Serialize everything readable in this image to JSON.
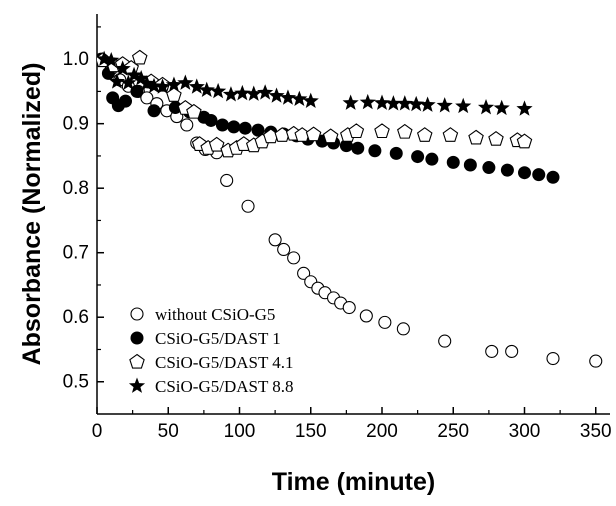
{
  "chart_data": {
    "type": "scatter",
    "xlabel": "Time (minute)",
    "ylabel": "Absorbance (Normalized)",
    "xlim": [
      0,
      360
    ],
    "ylim": [
      0.45,
      1.07
    ],
    "xticks": [
      0,
      50,
      100,
      150,
      200,
      250,
      300,
      350
    ],
    "yticks": [
      0.5,
      0.6,
      0.7,
      0.8,
      0.9,
      1.0
    ],
    "xtick_labels": [
      "0",
      "50",
      "100",
      "150",
      "200",
      "250",
      "300",
      "350"
    ],
    "ytick_labels": [
      "0.5",
      "0.6",
      "0.7",
      "0.8",
      "0.9",
      "1.0"
    ],
    "grid": false,
    "legend_position": "bottom-left",
    "series": [
      {
        "name": "without CSiO-G5",
        "marker": "open-circle",
        "points": [
          [
            4,
            0.999
          ],
          [
            10,
            0.985
          ],
          [
            16,
            0.968
          ],
          [
            22,
            0.958
          ],
          [
            29,
            0.95
          ],
          [
            35,
            0.94
          ],
          [
            42,
            0.931
          ],
          [
            49,
            0.92
          ],
          [
            56,
            0.911
          ],
          [
            63,
            0.898
          ],
          [
            70,
            0.87
          ],
          [
            76,
            0.86
          ],
          [
            84,
            0.855
          ],
          [
            91,
            0.812
          ],
          [
            106,
            0.772
          ],
          [
            125,
            0.72
          ],
          [
            131,
            0.705
          ],
          [
            138,
            0.692
          ],
          [
            145,
            0.668
          ],
          [
            150,
            0.655
          ],
          [
            155,
            0.645
          ],
          [
            160,
            0.638
          ],
          [
            166,
            0.63
          ],
          [
            171,
            0.622
          ],
          [
            177,
            0.615
          ],
          [
            189,
            0.602
          ],
          [
            202,
            0.592
          ],
          [
            215,
            0.582
          ],
          [
            244,
            0.563
          ],
          [
            277,
            0.547
          ],
          [
            291,
            0.547
          ],
          [
            320,
            0.536
          ],
          [
            350,
            0.532
          ]
        ]
      },
      {
        "name": "CSiO-G5/DAST 1",
        "marker": "filled-circle",
        "points": [
          [
            3,
            1.0
          ],
          [
            8,
            0.978
          ],
          [
            11,
            0.94
          ],
          [
            15,
            0.928
          ],
          [
            20,
            0.935
          ],
          [
            28,
            0.95
          ],
          [
            40,
            0.92
          ],
          [
            55,
            0.925
          ],
          [
            65,
            0.918
          ],
          [
            75,
            0.91
          ],
          [
            80,
            0.905
          ],
          [
            88,
            0.898
          ],
          [
            96,
            0.895
          ],
          [
            104,
            0.893
          ],
          [
            113,
            0.89
          ],
          [
            122,
            0.887
          ],
          [
            131,
            0.884
          ],
          [
            140,
            0.881
          ],
          [
            148,
            0.876
          ],
          [
            158,
            0.873
          ],
          [
            166,
            0.87
          ],
          [
            175,
            0.866
          ],
          [
            183,
            0.862
          ],
          [
            195,
            0.858
          ],
          [
            210,
            0.854
          ],
          [
            225,
            0.849
          ],
          [
            235,
            0.845
          ],
          [
            250,
            0.84
          ],
          [
            262,
            0.836
          ],
          [
            275,
            0.832
          ],
          [
            288,
            0.828
          ],
          [
            300,
            0.824
          ],
          [
            310,
            0.821
          ],
          [
            320,
            0.817
          ]
        ]
      },
      {
        "name": "CSiO-G5/DAST 4.1",
        "marker": "open-pentagon",
        "points": [
          [
            4,
            0.998
          ],
          [
            12,
            0.99
          ],
          [
            18,
            0.992
          ],
          [
            24,
            0.986
          ],
          [
            30,
            1.002
          ],
          [
            38,
            0.965
          ],
          [
            46,
            0.96
          ],
          [
            54,
            0.944
          ],
          [
            62,
            0.924
          ],
          [
            68,
            0.918
          ],
          [
            72,
            0.868
          ],
          [
            78,
            0.862
          ],
          [
            84,
            0.867
          ],
          [
            92,
            0.858
          ],
          [
            98,
            0.862
          ],
          [
            103,
            0.868
          ],
          [
            110,
            0.866
          ],
          [
            116,
            0.872
          ],
          [
            122,
            0.88
          ],
          [
            130,
            0.882
          ],
          [
            138,
            0.884
          ],
          [
            144,
            0.882
          ],
          [
            152,
            0.883
          ],
          [
            164,
            0.88
          ],
          [
            176,
            0.882
          ],
          [
            182,
            0.888
          ],
          [
            200,
            0.888
          ],
          [
            216,
            0.887
          ],
          [
            230,
            0.882
          ],
          [
            248,
            0.882
          ],
          [
            266,
            0.878
          ],
          [
            280,
            0.876
          ],
          [
            295,
            0.874
          ],
          [
            300,
            0.872
          ]
        ]
      },
      {
        "name": "CSiO-G5/DAST 8.8",
        "marker": "filled-star",
        "points": [
          [
            5,
            1.0
          ],
          [
            10,
            0.998
          ],
          [
            14,
            0.965
          ],
          [
            18,
            0.985
          ],
          [
            22,
            0.963
          ],
          [
            26,
            0.975
          ],
          [
            31,
            0.97
          ],
          [
            35,
            0.962
          ],
          [
            40,
            0.958
          ],
          [
            46,
            0.957
          ],
          [
            54,
            0.96
          ],
          [
            62,
            0.963
          ],
          [
            70,
            0.957
          ],
          [
            77,
            0.952
          ],
          [
            85,
            0.95
          ],
          [
            94,
            0.945
          ],
          [
            102,
            0.947
          ],
          [
            110,
            0.946
          ],
          [
            118,
            0.948
          ],
          [
            126,
            0.943
          ],
          [
            134,
            0.94
          ],
          [
            142,
            0.938
          ],
          [
            150,
            0.935
          ],
          [
            178,
            0.932
          ],
          [
            190,
            0.933
          ],
          [
            200,
            0.932
          ],
          [
            208,
            0.931
          ],
          [
            216,
            0.931
          ],
          [
            224,
            0.93
          ],
          [
            232,
            0.929
          ],
          [
            244,
            0.928
          ],
          [
            257,
            0.927
          ],
          [
            273,
            0.925
          ],
          [
            284,
            0.924
          ],
          [
            300,
            0.923
          ]
        ]
      }
    ]
  }
}
